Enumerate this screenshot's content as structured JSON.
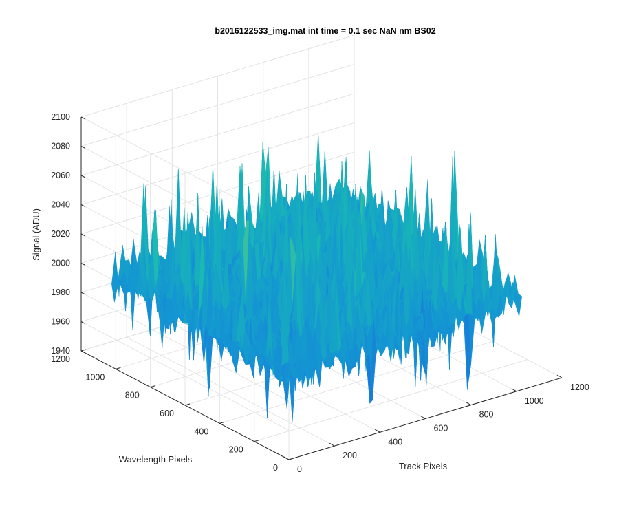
{
  "chart_data": {
    "type": "surface",
    "title": "b2016122533_img.mat int time = 0.1 sec  NaN nm BS02",
    "xlabel": "Track Pixels",
    "ylabel": "Wavelength Pixels",
    "zlabel": "Signal (ADU)",
    "x_ticks": [
      "0",
      "200",
      "400",
      "600",
      "800",
      "1000",
      "1200"
    ],
    "y_ticks": [
      "0",
      "200",
      "400",
      "600",
      "800",
      "1000",
      "1200"
    ],
    "z_ticks": [
      "1940",
      "1960",
      "1980",
      "2000",
      "2020",
      "2040",
      "2060",
      "2080",
      "2100"
    ],
    "xlim": [
      0,
      1200
    ],
    "ylim": [
      0,
      1200
    ],
    "zlim": [
      1940,
      2100
    ],
    "data_extent": {
      "x": [
        0,
        1024
      ],
      "y": [
        0,
        1024
      ]
    },
    "signal_summary": {
      "mean": 2000,
      "min": 1945,
      "max": 2090
    },
    "grid": true,
    "colormap": "parula",
    "colors": {
      "low": "#1a7fd6",
      "mid": "#1ab5b5",
      "high": "#c9c942"
    }
  }
}
